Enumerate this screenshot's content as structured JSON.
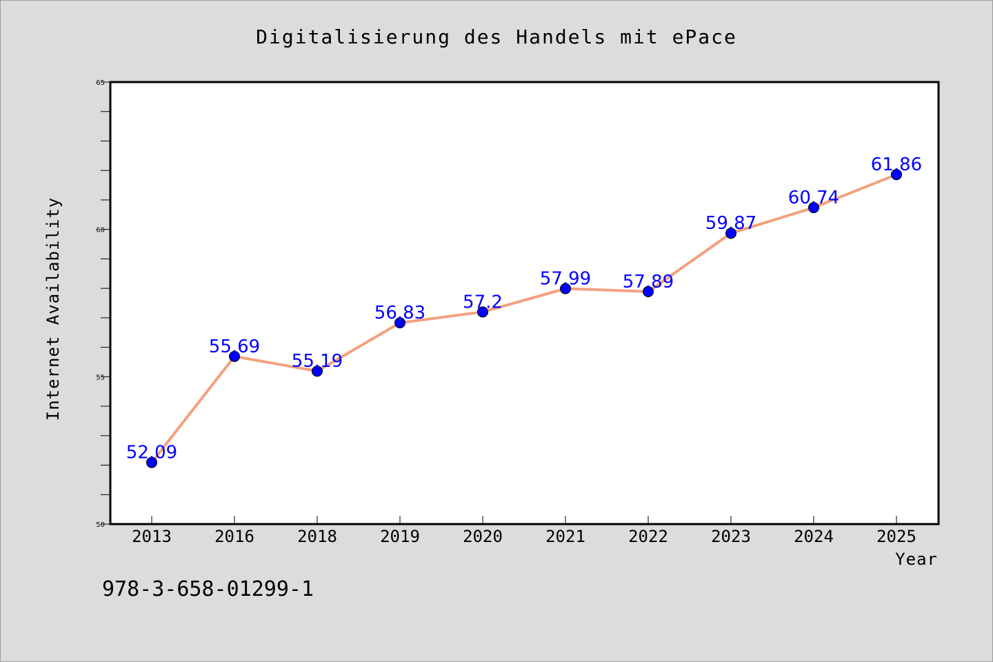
{
  "chart_data": {
    "type": "line",
    "title": "Digitalisierung des Handels mit ePace",
    "xlabel": "Year",
    "ylabel": "Internet Availability",
    "categories": [
      "2013",
      "2016",
      "2018",
      "2019",
      "2020",
      "2021",
      "2022",
      "2023",
      "2024",
      "2025"
    ],
    "series": [
      {
        "values": [
          52.09,
          55.69,
          55.19,
          56.83,
          57.2,
          57.99,
          57.89,
          59.87,
          60.74,
          61.86
        ],
        "labels": [
          "52.09",
          "55.69",
          "55.19",
          "56.83",
          "57.2",
          "57.99",
          "57.89",
          "59.87",
          "60.74",
          "61.86"
        ],
        "line_color": "#f4a07e",
        "marker_color": "#0000ff"
      }
    ],
    "ylim": [
      50,
      65
    ],
    "yticks": [
      "50",
      "55",
      "60",
      "65"
    ],
    "grid": false,
    "legend": "none"
  },
  "footer": {
    "isbn": "978-3-658-01299-1"
  },
  "colors": {
    "background": "#dcdcdc",
    "plot_background": "#ffffff",
    "label_color": "#0000ff"
  }
}
